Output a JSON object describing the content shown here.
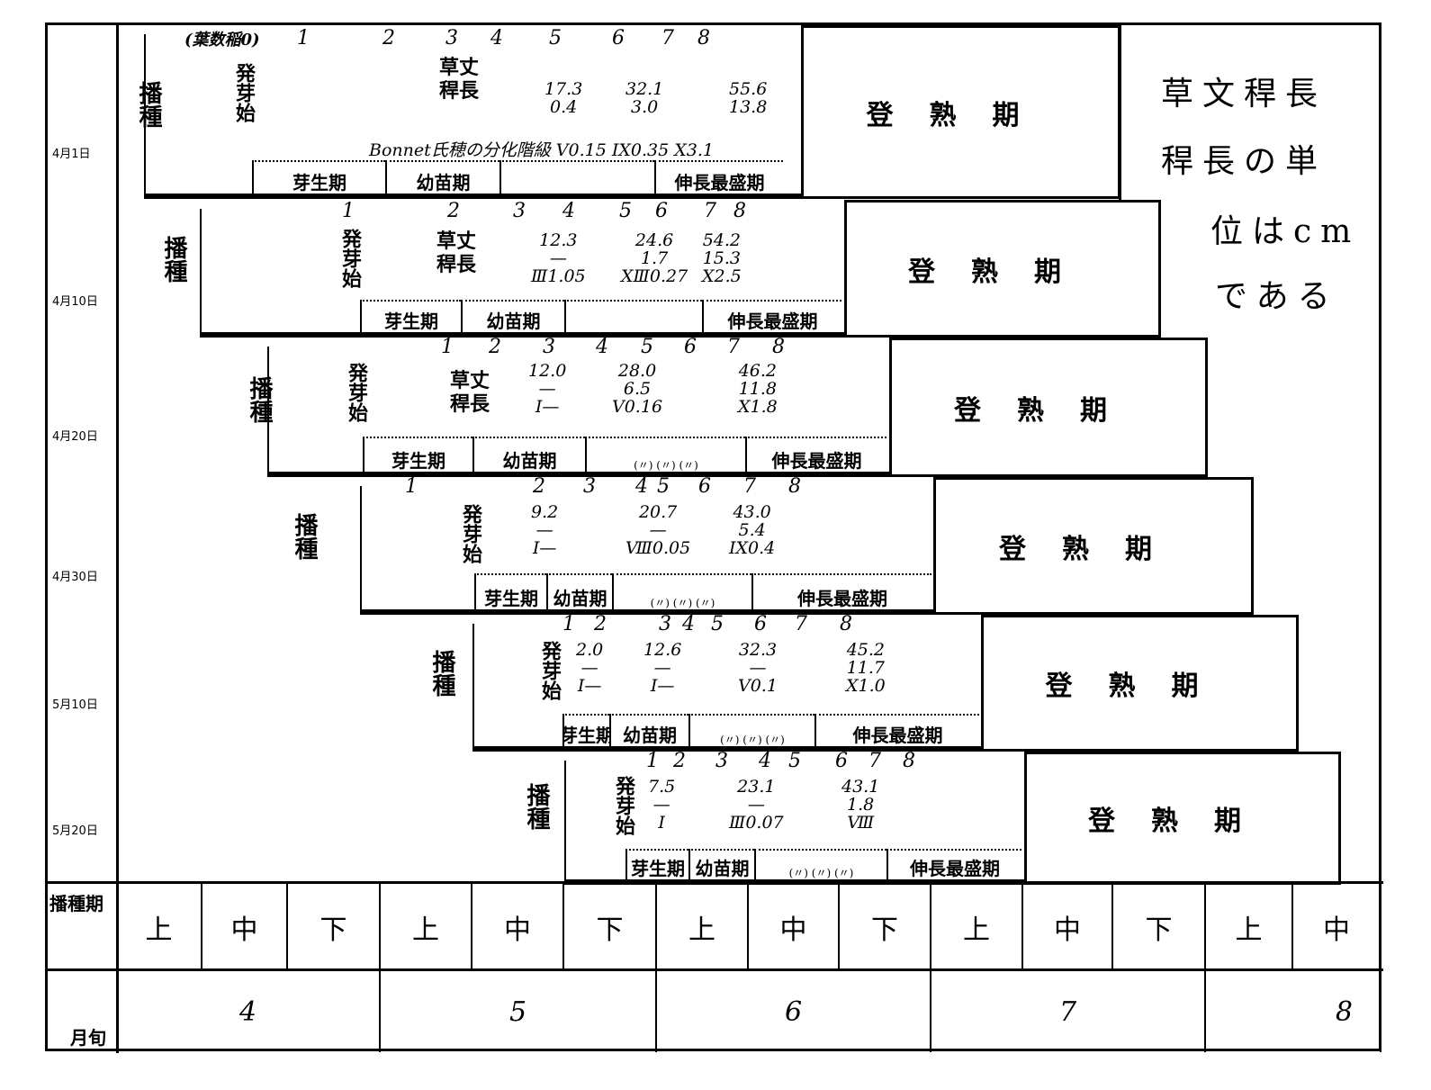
{
  "dates": [
    "4月1日",
    "4月10日",
    "4月20日",
    "4月30日",
    "5月10日",
    "5月20日"
  ],
  "leaf_header": "(葉数稲0)",
  "note": [
    "草文稈長",
    "稈長の単",
    "位はcm",
    "である"
  ],
  "rows": [
    {
      "sow": "播種",
      "germ": "発芽始",
      "label": "草丈\n稈長",
      "leaf_nums": [
        "1",
        "2",
        "3",
        "4",
        "5",
        "6",
        "7",
        "8"
      ],
      "values": [
        [
          "17.3",
          "0.4"
        ],
        [
          "32.1",
          "3.0"
        ],
        [
          "55.6",
          "13.8"
        ]
      ],
      "bonnet": "Bonnet氏穂の分化階級 V0.15 IX0.35 X3.1",
      "stages": [
        "芽生期",
        "幼苗期",
        "",
        "伸長最盛期"
      ],
      "ripening": "登熟期"
    },
    {
      "sow": "播種",
      "germ": "発芽始",
      "label": "草丈\n稈長",
      "leaf_nums": [
        "1",
        "2",
        "3",
        "4",
        "5",
        "6",
        "7",
        "8"
      ],
      "values": [
        [
          "12.3",
          "—",
          "Ⅲ1.05"
        ],
        [
          "24.6",
          "1.7",
          "XⅢ0.27"
        ],
        [
          "54.2",
          "15.3",
          "X2.5"
        ]
      ],
      "stages": [
        "芽生期",
        "幼苗期",
        "",
        "伸長最盛期"
      ],
      "ripening": "登熟期"
    },
    {
      "sow": "播種",
      "germ": "発芽始",
      "label": "草丈\n稈長",
      "leaf_nums": [
        "1",
        "2",
        "3",
        "4",
        "5",
        "6",
        "7",
        "8"
      ],
      "values": [
        [
          "12.0",
          "—",
          "Ⅰ—"
        ],
        [
          "28.0",
          "6.5",
          "Ⅴ0.16"
        ],
        [
          "46.2",
          "11.8",
          "X1.8"
        ]
      ],
      "stages": [
        "芽生期",
        "幼苗期",
        "(〃) (〃) (〃)",
        "伸長最盛期"
      ],
      "ripening": "登熟期"
    },
    {
      "sow": "播種",
      "germ": "発芽始",
      "label": "",
      "leaf_nums": [
        "1",
        "2",
        "3",
        "4",
        "5",
        "6",
        "7",
        "8"
      ],
      "values": [
        [
          "9.2",
          "—",
          "Ⅰ—"
        ],
        [
          "20.7",
          "—",
          "Ⅷ0.05"
        ],
        [
          "43.0",
          "5.4",
          "IX0.4"
        ]
      ],
      "stages": [
        "芽生期",
        "幼苗期",
        "(〃) (〃) (〃)",
        "伸長最盛期"
      ],
      "ripening": "登熟期"
    },
    {
      "sow": "播種",
      "germ": "発芽始",
      "label": "",
      "leaf_nums": [
        "1",
        "2",
        "3",
        "4",
        "5",
        "6",
        "7",
        "8"
      ],
      "values": [
        [
          "2.0",
          "—",
          "Ⅰ—"
        ],
        [
          "12.6",
          "—",
          "Ⅰ—"
        ],
        [
          "32.3",
          "—",
          "Ⅴ0.1"
        ],
        [
          "45.2",
          "11.7",
          "X1.0"
        ]
      ],
      "stages": [
        "芽生期",
        "幼苗期",
        "(〃) (〃) (〃)",
        "伸長最盛期"
      ],
      "ripening": "登熟期"
    },
    {
      "sow": "播種",
      "germ": "発芽始",
      "label": "",
      "leaf_nums": [
        "1",
        "2",
        "3",
        "4",
        "5",
        "6",
        "7",
        "8"
      ],
      "values": [
        [
          "7.5",
          "—",
          "Ⅰ"
        ],
        [
          "23.1",
          "—",
          "Ⅲ0.07"
        ],
        [
          "43.1",
          "1.8",
          "Ⅷ"
        ]
      ],
      "stages": [
        "芽生期",
        "幼苗期",
        "(〃) (〃) (〃)",
        "伸長最盛期"
      ],
      "ripening": "登熟期"
    }
  ],
  "bottom": {
    "sowing_period_label": "播種期",
    "xun": [
      "上",
      "中",
      "下",
      "上",
      "中",
      "下",
      "上",
      "中",
      "下",
      "上",
      "中",
      "下",
      "上",
      "中"
    ],
    "month_label": "月旬",
    "months": [
      "4",
      "5",
      "6",
      "7",
      "8"
    ]
  }
}
